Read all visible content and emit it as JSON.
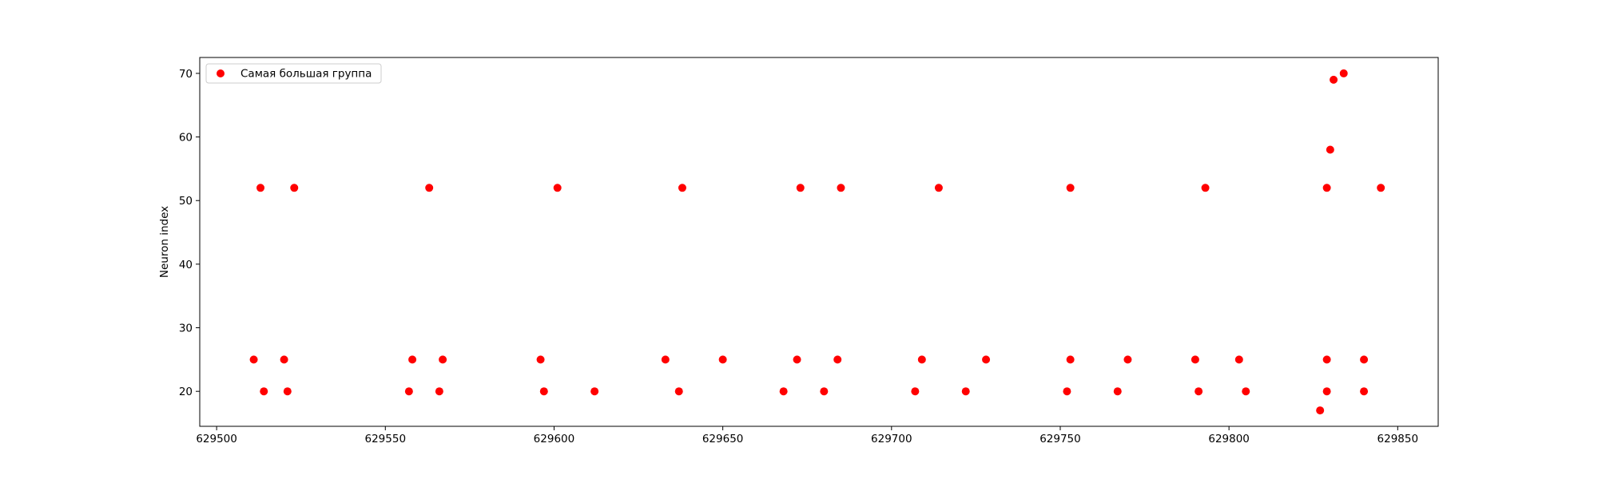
{
  "chart_data": {
    "type": "scatter",
    "title": "",
    "xlabel": "",
    "ylabel": "Neuron index",
    "xlim": [
      629495,
      629862
    ],
    "ylim": [
      14.5,
      72.5
    ],
    "xticks": [
      629500,
      629550,
      629600,
      629650,
      629700,
      629750,
      629800,
      629850
    ],
    "yticks": [
      20,
      30,
      40,
      50,
      60,
      70
    ],
    "grid": false,
    "legend": {
      "position": "top-left"
    },
    "series": [
      {
        "name": "Самая большая группа",
        "color": "#ff0000",
        "marker": "circle",
        "points": [
          [
            629511,
            25
          ],
          [
            629513,
            52
          ],
          [
            629514,
            20
          ],
          [
            629520,
            25
          ],
          [
            629521,
            20
          ],
          [
            629523,
            52
          ],
          [
            629557,
            20
          ],
          [
            629558,
            25
          ],
          [
            629563,
            52
          ],
          [
            629566,
            20
          ],
          [
            629567,
            25
          ],
          [
            629596,
            25
          ],
          [
            629597,
            20
          ],
          [
            629601,
            52
          ],
          [
            629612,
            20
          ],
          [
            629633,
            25
          ],
          [
            629637,
            20
          ],
          [
            629638,
            52
          ],
          [
            629650,
            25
          ],
          [
            629668,
            20
          ],
          [
            629672,
            25
          ],
          [
            629673,
            52
          ],
          [
            629680,
            20
          ],
          [
            629684,
            25
          ],
          [
            629685,
            52
          ],
          [
            629707,
            20
          ],
          [
            629709,
            25
          ],
          [
            629714,
            52
          ],
          [
            629722,
            20
          ],
          [
            629728,
            25
          ],
          [
            629752,
            20
          ],
          [
            629753,
            25
          ],
          [
            629753,
            52
          ],
          [
            629767,
            20
          ],
          [
            629770,
            25
          ],
          [
            629790,
            25
          ],
          [
            629791,
            20
          ],
          [
            629793,
            52
          ],
          [
            629803,
            25
          ],
          [
            629805,
            20
          ],
          [
            629827,
            17
          ],
          [
            629829,
            20
          ],
          [
            629829,
            25
          ],
          [
            629829,
            52
          ],
          [
            629830,
            58
          ],
          [
            629831,
            69
          ],
          [
            629834,
            70
          ],
          [
            629840,
            25
          ],
          [
            629840,
            20
          ],
          [
            629845,
            52
          ]
        ]
      }
    ]
  }
}
